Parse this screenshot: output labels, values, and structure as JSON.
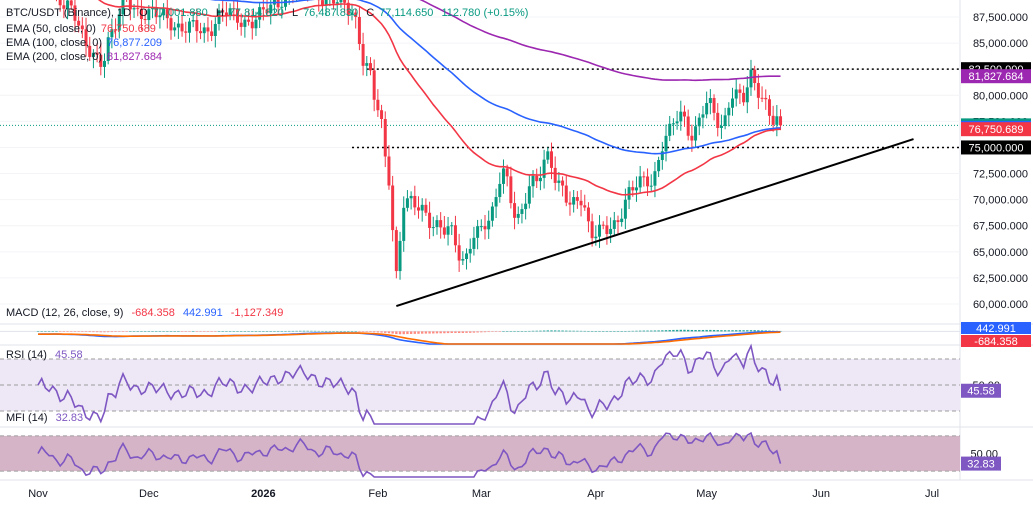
{
  "symbol_header": {
    "symbol": "BTC/USDT (Binance), 1D",
    "o_label": "O",
    "o_value": "77,001.880",
    "h_label": "H",
    "h_value": "77,814.820",
    "l_label": "L",
    "l_value": "76,487.830",
    "c_label": "C",
    "c_value": "77,114.650",
    "change": "112.780 (+0.15%)"
  },
  "ema_legend": [
    {
      "label": "EMA (50, close, 0)",
      "value": "76,750.689",
      "color": "#f23645"
    },
    {
      "label": "EMA (100, close, 0)",
      "value": "76,877.209",
      "color": "#2962ff"
    },
    {
      "label": "EMA (200, close, 0)",
      "value": "81,827.684",
      "color": "#9c27b0"
    }
  ],
  "indicator_labels": {
    "macd": {
      "label": "MACD (12, 26, close, 9)",
      "v1": "-684.358",
      "v2": "442.991",
      "v3": "-1,127.349"
    },
    "rsi": {
      "label": "RSI (14)",
      "value": "45.58"
    },
    "mfi": {
      "label": "MFI (14)",
      "value": "32.83"
    }
  },
  "price_axis": {
    "ticks": [
      "60,000.000",
      "62,500.000",
      "65,000.000",
      "67,500.000",
      "70,000.000",
      "72,500.000",
      "75,000.000",
      "77,500.000",
      "80,000.000",
      "82,500.000",
      "85,000.000",
      "87,500.000"
    ],
    "tick_values": [
      60000,
      62500,
      65000,
      67500,
      70000,
      72500,
      75000,
      77500,
      80000,
      82500,
      85000,
      87500
    ],
    "badges": [
      {
        "text": "82,500.000",
        "value": 82500,
        "bg": "#000000",
        "fg": "#ffffff"
      },
      {
        "text": "81,827.684",
        "value": 81827.684,
        "bg": "#9c27b0",
        "fg": "#ffffff"
      },
      {
        "text": "77,114.650",
        "value": 77114.65,
        "bg": "#089981",
        "fg": "#ffffff"
      },
      {
        "text": "76,877.209",
        "value": 76877.209,
        "bg": "#2962ff",
        "fg": "#ffffff"
      },
      {
        "text": "76,750.689",
        "value": 76750.689,
        "bg": "#f23645",
        "fg": "#ffffff"
      },
      {
        "text": "75,000.000",
        "value": 75000,
        "bg": "#000000",
        "fg": "#ffffff"
      }
    ]
  },
  "macd_axis": {
    "badges": [
      {
        "text": "442.991",
        "value": 442.991,
        "bg": "#2962ff",
        "fg": "#ffffff"
      },
      {
        "text": "-684.358",
        "value": -684.358,
        "bg": "#f23645",
        "fg": "#ffffff"
      }
    ]
  },
  "rsi_axis": {
    "ticks": [
      "50.00"
    ],
    "badge": {
      "text": "45.58",
      "value": 45.58,
      "bg": "#7e57c2",
      "fg": "#ffffff"
    }
  },
  "mfi_axis": {
    "ticks": [
      "50.00"
    ],
    "badge": {
      "text": "32.83",
      "value": 32.83,
      "bg": "#7e57c2",
      "fg": "#ffffff"
    }
  },
  "time_axis": {
    "labels": [
      "Nov",
      "Dec",
      "2026",
      "Feb",
      "Mar",
      "Apr",
      "May",
      "Jun",
      "Jul"
    ],
    "label_days": [
      0,
      30,
      61,
      92,
      120,
      151,
      181,
      212,
      242
    ],
    "bold": [
      false,
      false,
      true,
      false,
      false,
      false,
      false,
      false,
      false
    ]
  },
  "colors": {
    "up": "#089981",
    "down": "#f23645",
    "ema50": "#f23645",
    "ema100": "#2962ff",
    "ema200": "#9c27b0",
    "macd": "#2962ff",
    "signal": "#ff6d00",
    "rsi": "#7e57c2",
    "rsi_band": "#ede7f6",
    "mfi": "#7e57c2",
    "mfi_band": "#d6b4c8"
  },
  "chart_data": {
    "type": "candlestick",
    "x_axis": "date",
    "x_start_date": "2025-11-01",
    "price_ylim": [
      58000,
      89000
    ],
    "horizontal_levels": [
      82500,
      75000
    ],
    "trendlines": [
      {
        "from": {
          "day": 97,
          "value": 59800
        },
        "to": {
          "day": 237,
          "value": 75800
        }
      }
    ],
    "anchors": [
      {
        "day": 0,
        "value": 91000
      },
      {
        "day": 8,
        "value": 89000
      },
      {
        "day": 14,
        "value": 84000
      },
      {
        "day": 17,
        "value": 83500
      },
      {
        "day": 20,
        "value": 86000
      },
      {
        "day": 24,
        "value": 89000
      },
      {
        "day": 28,
        "value": 88000
      },
      {
        "day": 33,
        "value": 87500
      },
      {
        "day": 40,
        "value": 86500
      },
      {
        "day": 45,
        "value": 86000
      },
      {
        "day": 50,
        "value": 88000
      },
      {
        "day": 55,
        "value": 87000
      },
      {
        "day": 62,
        "value": 88000
      },
      {
        "day": 70,
        "value": 90500
      },
      {
        "day": 78,
        "value": 89500
      },
      {
        "day": 85,
        "value": 88000
      },
      {
        "day": 89,
        "value": 83000
      },
      {
        "day": 92,
        "value": 78500
      },
      {
        "day": 95,
        "value": 72000
      },
      {
        "day": 97,
        "value": 63000
      },
      {
        "day": 99,
        "value": 70000
      },
      {
        "day": 103,
        "value": 69000
      },
      {
        "day": 107,
        "value": 68000
      },
      {
        "day": 111,
        "value": 67000
      },
      {
        "day": 115,
        "value": 64000
      },
      {
        "day": 118,
        "value": 67000
      },
      {
        "day": 122,
        "value": 67500
      },
      {
        "day": 126,
        "value": 73000
      },
      {
        "day": 130,
        "value": 68000
      },
      {
        "day": 134,
        "value": 71500
      },
      {
        "day": 138,
        "value": 74500
      },
      {
        "day": 141,
        "value": 71000
      },
      {
        "day": 144,
        "value": 69500
      },
      {
        "day": 147,
        "value": 70500
      },
      {
        "day": 150,
        "value": 66500
      },
      {
        "day": 153,
        "value": 66800
      },
      {
        "day": 156,
        "value": 67800
      },
      {
        "day": 160,
        "value": 70500
      },
      {
        "day": 163,
        "value": 71500
      },
      {
        "day": 166,
        "value": 72000
      },
      {
        "day": 170,
        "value": 76000
      },
      {
        "day": 174,
        "value": 78000
      },
      {
        "day": 177,
        "value": 76500
      },
      {
        "day": 181,
        "value": 79000
      },
      {
        "day": 185,
        "value": 77000
      },
      {
        "day": 188,
        "value": 80500
      },
      {
        "day": 191,
        "value": 79500
      },
      {
        "day": 193,
        "value": 81500
      },
      {
        "day": 195,
        "value": 80500
      },
      {
        "day": 197,
        "value": 79500
      },
      {
        "day": 199,
        "value": 77800
      },
      {
        "day": 201,
        "value": 77100
      }
    ],
    "ema_levels": {
      "ema50": 76750.689,
      "ema100": 76877.209,
      "ema200": 81827.684
    },
    "last_close": 77114.65,
    "macd_ylim": [
      -3500,
      1500
    ],
    "rsi_ylim": [
      20,
      80
    ],
    "rsi_bands": [
      70,
      30
    ],
    "rsi_last": 45.58,
    "mfi_ylim": [
      10,
      90
    ],
    "mfi_bands": [
      80,
      20
    ],
    "mfi_last": 32.83
  }
}
